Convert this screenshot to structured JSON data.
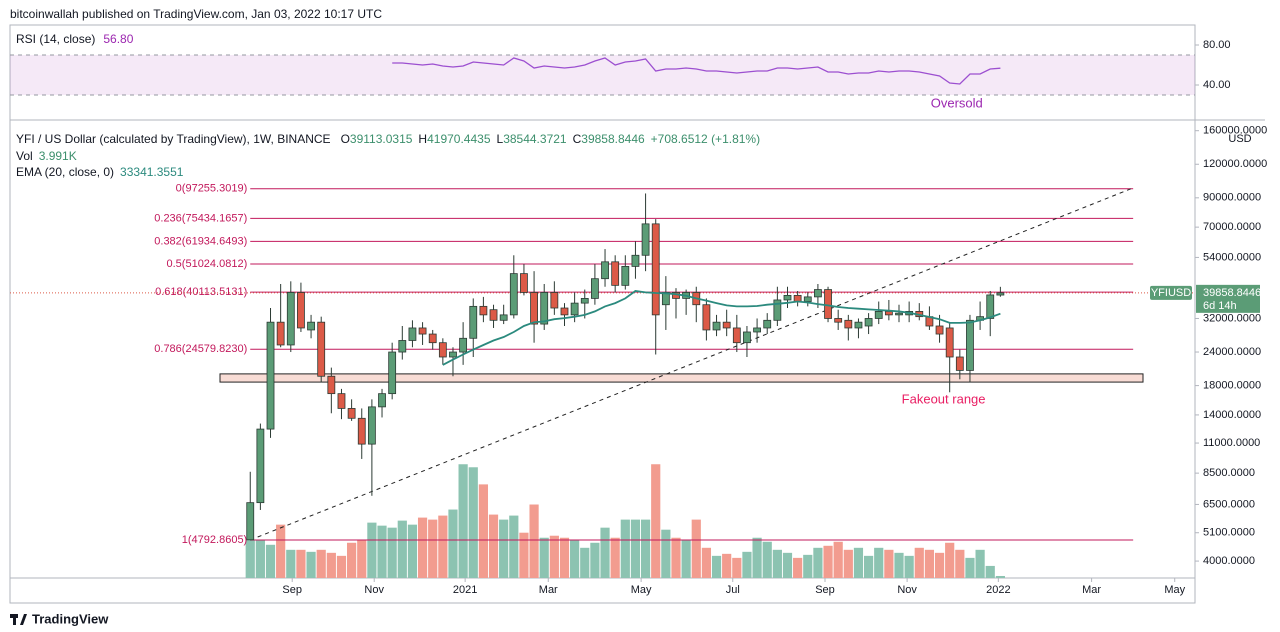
{
  "header": {
    "publisher": "bitcoinwallah published on TradingView.com, Jan 03, 2022 10:17 UTC"
  },
  "footer": {
    "brand": "TradingView"
  },
  "chart_data": {
    "type": "candlestick",
    "title": "YFI / US Dollar (calculated by TradingView), 1W, BINANCE",
    "ohlc_prefixes": [
      "O",
      "H",
      "L",
      "C"
    ],
    "change_label": "+708.6512 (+1.81%)",
    "symbol": "YFIUSD",
    "countdown": "6d 14h",
    "currency": "USD",
    "log_scale": true,
    "grid": false,
    "up_color": "#5b9c76",
    "down_color": "#dc5a47",
    "wick_color": "#2b3a33",
    "open": [
      4800,
      6600,
      12400,
      31000,
      25500,
      40000,
      29000,
      31000,
      19500,
      16800,
      14800,
      13600,
      10900,
      15000,
      16800,
      24000,
      26500,
      29500,
      28000,
      26000,
      23000,
      24000,
      27000,
      35500,
      34500,
      31500,
      33000,
      47000,
      40000,
      30500,
      40000,
      35000,
      33000,
      36500,
      38000,
      45000,
      52000,
      42500,
      50000,
      55000,
      72000,
      36000,
      40000,
      38000,
      40000,
      36000,
      29000,
      31000,
      29500,
      26000,
      28500,
      29500,
      31500,
      37500,
      39000,
      37000,
      38500,
      41000,
      32000,
      31500,
      29500,
      30000,
      32000,
      34000,
      33000,
      33000,
      34000,
      32500,
      30000,
      29500,
      23000,
      20500,
      31500,
      32000,
      39113.0315
    ],
    "high": [
      8600,
      13000,
      35000,
      43000,
      44000,
      43500,
      33000,
      32500,
      21000,
      17500,
      16000,
      14800,
      16000,
      17500,
      26000,
      30000,
      31500,
      31000,
      29000,
      27000,
      25000,
      31000,
      38000,
      38500,
      36000,
      36000,
      55000,
      51000,
      48000,
      43000,
      44000,
      36500,
      40000,
      41000,
      51000,
      58000,
      55000,
      55000,
      62000,
      93435,
      75000,
      46000,
      41500,
      41000,
      42000,
      38000,
      33000,
      34500,
      33000,
      30000,
      32000,
      33500,
      42000,
      42000,
      40500,
      40000,
      43000,
      42000,
      34500,
      33000,
      32000,
      33500,
      37000,
      37500,
      36000,
      37000,
      36500,
      35500,
      33000,
      31000,
      24500,
      33000,
      37000,
      40500,
      41970.4435
    ],
    "low": [
      4792.8605,
      6200,
      11500,
      25000,
      24000,
      28500,
      27000,
      18500,
      14200,
      13500,
      13300,
      9600,
      7000,
      13700,
      16000,
      22500,
      25000,
      25500,
      24500,
      21500,
      19500,
      21500,
      23000,
      31000,
      29500,
      30500,
      32000,
      39000,
      26000,
      29000,
      33000,
      30000,
      31000,
      32000,
      36000,
      42000,
      40000,
      41000,
      45000,
      48000,
      23500,
      29000,
      32000,
      33000,
      31000,
      26500,
      27500,
      27500,
      24000,
      23000,
      26000,
      28000,
      30000,
      35000,
      35500,
      35500,
      35000,
      31000,
      29000,
      26500,
      27000,
      28000,
      30500,
      31500,
      31000,
      31000,
      31500,
      29000,
      26000,
      17000,
      19000,
      18500,
      29000,
      27500,
      38544.3721
    ],
    "close": [
      6600,
      12400,
      31000,
      25500,
      40000,
      29500,
      31000,
      19500,
      16800,
      14800,
      13600,
      10900,
      15000,
      16800,
      24000,
      26500,
      29500,
      28000,
      26000,
      23000,
      24000,
      27000,
      35500,
      33000,
      31500,
      33000,
      47000,
      40000,
      30500,
      40000,
      35000,
      33000,
      36500,
      38000,
      45000,
      52000,
      42500,
      50000,
      55000,
      72000,
      33000,
      40000,
      38000,
      40000,
      36000,
      29000,
      31000,
      29500,
      26000,
      28500,
      29500,
      31500,
      37500,
      39000,
      37000,
      38500,
      41000,
      32000,
      31000,
      29500,
      31000,
      32000,
      34000,
      33000,
      33500,
      34000,
      32500,
      30000,
      28000,
      23000,
      20500,
      31500,
      32500,
      39150,
      39858.8446
    ],
    "ylim": [
      3460,
      168000
    ],
    "yticks": [
      {
        "value": 160000,
        "label": "160000.0000"
      },
      {
        "value": 120000,
        "label": "120000.0000"
      },
      {
        "value": 90000,
        "label": "90000.0000"
      },
      {
        "value": 70000,
        "label": "70000.0000"
      },
      {
        "value": 54000,
        "label": "54000.0000"
      },
      {
        "value": 32000,
        "label": "32000.0000"
      },
      {
        "value": 24000,
        "label": "24000.0000"
      },
      {
        "value": 18000,
        "label": "18000.0000"
      },
      {
        "value": 14000,
        "label": "14000.0000"
      },
      {
        "value": 11000,
        "label": "11000.0000"
      },
      {
        "value": 8500,
        "label": "8500.0000"
      },
      {
        "value": 6500,
        "label": "6500.0000"
      },
      {
        "value": 5100,
        "label": "5100.0000"
      },
      {
        "value": 4000,
        "label": "4000.0000"
      }
    ],
    "xlim": [
      -23.7,
      93.2
    ],
    "xticks": [
      {
        "value": 4.14,
        "label": "Sep"
      },
      {
        "value": 12.23,
        "label": "Nov"
      },
      {
        "value": 21.2,
        "label": "2021"
      },
      {
        "value": 29.4,
        "label": "Mar"
      },
      {
        "value": 38.56,
        "label": "May"
      },
      {
        "value": 47.6,
        "label": "Jul"
      },
      {
        "value": 56.7,
        "label": "Sep"
      },
      {
        "value": 64.8,
        "label": "Nov"
      },
      {
        "value": 73.8,
        "label": "2022"
      },
      {
        "value": 83.0,
        "label": "Mar"
      },
      {
        "value": 91.2,
        "label": "May"
      }
    ],
    "volume": {
      "label": "Vol",
      "value_label": "3.991K",
      "ylim": [
        0,
        900
      ],
      "up_color": "#8cc3b1",
      "down_color": "#f29c8f",
      "values": [
        76,
        76,
        66,
        106,
        56,
        56,
        52,
        56,
        50,
        44,
        70,
        76,
        110,
        104,
        100,
        114,
        106,
        120,
        116,
        124,
        136,
        226,
        220,
        186,
        126,
        116,
        124,
        90,
        146,
        80,
        84,
        80,
        76,
        60,
        70,
        100,
        80,
        116,
        116,
        116,
        226,
        96,
        80,
        76,
        116,
        60,
        44,
        48,
        40,
        52,
        80,
        72,
        56,
        50,
        40,
        46,
        60,
        64,
        72,
        56,
        60,
        44,
        60,
        56,
        50,
        44,
        60,
        56,
        50,
        70,
        56,
        40,
        56,
        24,
        3.991
      ]
    },
    "ema": {
      "label": "EMA (20, close, 0)",
      "color": "#2b8a7e",
      "values": [
        null,
        null,
        null,
        null,
        null,
        null,
        null,
        null,
        null,
        null,
        null,
        null,
        null,
        null,
        null,
        null,
        null,
        null,
        null,
        21500,
        22500,
        23500,
        24500,
        25500,
        26500,
        27300,
        28500,
        30000,
        31000,
        31200,
        31800,
        32100,
        32500,
        33000,
        34000,
        35500,
        36500,
        38000,
        40500,
        40000,
        39800,
        39700,
        39400,
        38900,
        38000,
        37300,
        36500,
        35800,
        35500,
        35500,
        35600,
        36000,
        36300,
        36600,
        37000,
        36700,
        36200,
        35800,
        35300,
        35000,
        34800,
        34600,
        34400,
        34200,
        34000,
        33600,
        33000,
        32400,
        31800,
        30800,
        30800,
        30900,
        31500,
        32300,
        33341.3551
      ]
    },
    "rsi": {
      "label": "RSI (14, close)",
      "value_label": "56.80",
      "color": "#9c4fd0",
      "band": [
        30,
        70
      ],
      "band_color": "#9c27b0",
      "annotation": "Oversold",
      "ylim": [
        7,
        100
      ],
      "yticks": [
        {
          "value": 80,
          "label": "80.00"
        },
        {
          "value": 40,
          "label": "40.00"
        }
      ],
      "values": [
        null,
        null,
        null,
        null,
        null,
        null,
        null,
        null,
        null,
        null,
        null,
        null,
        null,
        null,
        62,
        62,
        61,
        60,
        61,
        59,
        58,
        59,
        63,
        62,
        61,
        60,
        67,
        64,
        57,
        59,
        58,
        57,
        58,
        60,
        64,
        67,
        60,
        63,
        64,
        66,
        54,
        56,
        56,
        57,
        56,
        54,
        54,
        53,
        52,
        53,
        54,
        54,
        57,
        57,
        56,
        57,
        58,
        53,
        53,
        51,
        52,
        52,
        54,
        53,
        54,
        54,
        53,
        51,
        49,
        42,
        41,
        51,
        51,
        56,
        56.8
      ]
    },
    "fib": {
      "color": "#c2185b",
      "levels": [
        {
          "label": "0(97255.3019)",
          "value": 97255.3019
        },
        {
          "label": "0.236(75434.1657)",
          "value": 75434.1657
        },
        {
          "label": "0.382(61934.6493)",
          "value": 61934.6493
        },
        {
          "label": "0.5(51024.0812)",
          "value": 51024.0812
        },
        {
          "label": "0.618(40113.5131)",
          "value": 40113.5131
        },
        {
          "label": "0.786(24579.8230)",
          "value": 24579.823
        },
        {
          "label": "1(4792.8605)",
          "value": 4792.8605
        }
      ]
    },
    "zone": {
      "range": [
        18550,
        19900
      ],
      "label": "Fakeout range",
      "color": "#e91e63"
    },
    "trendline": {
      "x": [
        0,
        87.1
      ],
      "y": [
        4792.8605,
        98000
      ]
    }
  }
}
